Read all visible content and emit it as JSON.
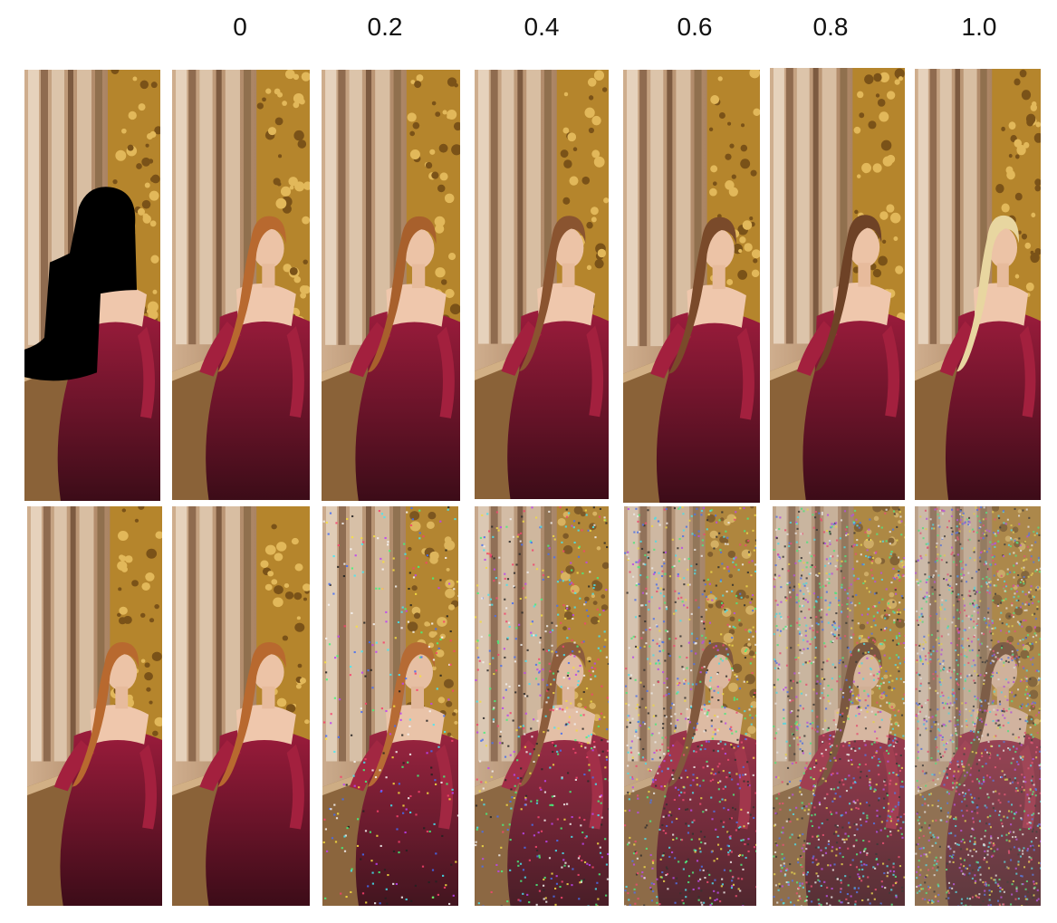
{
  "column_labels": [
    "0",
    "0.2",
    "0.4",
    "0.6",
    "0.8",
    "1.0"
  ],
  "rows": [
    {
      "name": "edited-row",
      "panels": [
        {
          "kind": "masked-input",
          "noise": 0,
          "hair": "none"
        },
        {
          "kind": "output",
          "noise": 0,
          "hair": "#b8692f"
        },
        {
          "kind": "output",
          "noise": 0,
          "hair": "#a8602c"
        },
        {
          "kind": "output",
          "noise": 0,
          "hair": "#8a5430"
        },
        {
          "kind": "output",
          "noise": 0,
          "hair": "#7a4a2a"
        },
        {
          "kind": "output",
          "noise": 0,
          "hair": "#6e4226"
        },
        {
          "kind": "output",
          "noise": 0,
          "hair": "#e8d6a0"
        }
      ]
    },
    {
      "name": "noised-row",
      "panels": [
        {
          "kind": "original",
          "noise": 0,
          "hair": "#b8692f"
        },
        {
          "kind": "noised",
          "noise": 0,
          "hair": "#b8692f"
        },
        {
          "kind": "noised",
          "noise": 0.2,
          "hair": "#b8692f"
        },
        {
          "kind": "noised",
          "noise": 0.4,
          "hair": "#8a5430"
        },
        {
          "kind": "noised",
          "noise": 0.6,
          "hair": "#7a4a2a"
        },
        {
          "kind": "noised",
          "noise": 0.8,
          "hair": "#6e4226"
        },
        {
          "kind": "noised",
          "noise": 1.0,
          "hair": "#6e4226"
        }
      ]
    }
  ]
}
